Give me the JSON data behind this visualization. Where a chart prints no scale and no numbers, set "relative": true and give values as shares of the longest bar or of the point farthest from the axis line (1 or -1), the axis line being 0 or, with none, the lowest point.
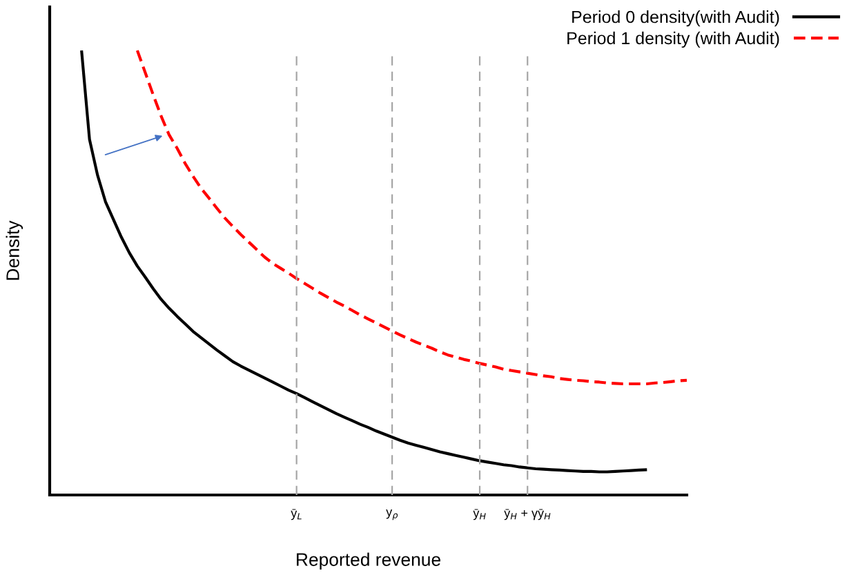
{
  "chart_data": {
    "type": "line",
    "relative": true,
    "xlabel": "Reported revenue",
    "ylabel": "Density",
    "legend": "top right",
    "marker": "none",
    "categories": [
      null,
      null,
      null,
      null,
      null,
      null,
      null,
      null,
      null,
      null,
      null,
      null,
      null,
      null,
      null,
      null,
      null,
      null,
      null,
      null,
      null,
      null,
      null,
      null,
      null,
      null,
      null,
      null,
      null,
      null,
      null,
      "ȳ$_{L}$",
      null,
      null,
      null,
      null,
      null,
      null,
      null,
      null,
      null,
      null,
      null,
      "y$_{ρ}$",
      null,
      null,
      null,
      null,
      null,
      null,
      null,
      null,
      null,
      null,
      "ȳ$_{H}$",
      null,
      null,
      null,
      null,
      null,
      "ȳ$_{H}$ + γȳ$_{H}$",
      null,
      null,
      null,
      null,
      null,
      null,
      null,
      null,
      null,
      null,
      null,
      null,
      null,
      null,
      null,
      null,
      null,
      null,
      null,
      null
    ],
    "series": [
      {
        "name": "Period 0 density(with Audit)",
        "color": "#000000",
        "line_style": "solid",
        "values": [
          null,
          null,
          null,
          null,
          1.0,
          0.8,
          0.72,
          0.66,
          0.62,
          0.58,
          0.545,
          0.515,
          0.49,
          0.464,
          0.44,
          0.42,
          0.402,
          0.385,
          0.368,
          0.354,
          0.34,
          0.326,
          0.313,
          0.3,
          0.29,
          0.281,
          0.272,
          0.263,
          0.254,
          0.245,
          0.236,
          0.228,
          0.219,
          0.21,
          0.201,
          0.192,
          0.183,
          0.175,
          0.167,
          0.159,
          0.152,
          0.144,
          0.137,
          0.13,
          0.123,
          0.117,
          0.112,
          0.107,
          0.102,
          0.097,
          0.093,
          0.089,
          0.085,
          0.081,
          0.077,
          0.074,
          0.071,
          0.068,
          0.066,
          0.063,
          0.061,
          0.059,
          0.058,
          0.057,
          0.056,
          0.055,
          0.054,
          0.053,
          0.053,
          0.052,
          0.052,
          0.053,
          0.054,
          0.055,
          0.056,
          0.057,
          null,
          null,
          null,
          null,
          null
        ]
      },
      {
        "name": "Period 1 density (with Audit)",
        "color": "#ff0000",
        "line_style": "dashed",
        "values": [
          null,
          null,
          null,
          null,
          null,
          null,
          null,
          null,
          null,
          null,
          null,
          1.0,
          0.95,
          0.9,
          0.852,
          0.81,
          0.78,
          0.746,
          0.717,
          0.69,
          0.668,
          0.645,
          0.623,
          0.604,
          0.586,
          0.569,
          0.552,
          0.535,
          0.521,
          0.51,
          0.499,
          0.487,
          0.476,
          0.465,
          0.454,
          0.444,
          0.434,
          0.425,
          0.415,
          0.405,
          0.396,
          0.387,
          0.378,
          0.369,
          0.36,
          0.352,
          0.344,
          0.337,
          0.33,
          0.322,
          0.315,
          0.31,
          0.305,
          0.301,
          0.296,
          0.292,
          0.288,
          0.283,
          0.28,
          0.277,
          0.274,
          0.271,
          0.268,
          0.266,
          0.262,
          0.26,
          0.258,
          0.257,
          0.255,
          0.254,
          0.252,
          0.251,
          0.25,
          0.25,
          0.25,
          0.25,
          0.252,
          0.253,
          0.255,
          0.257,
          0.258
        ]
      }
    ],
    "ref_lines": [
      {
        "axis": "x",
        "value": "ȳ$_{L}$",
        "color": "#a6a6a6",
        "line_style": "dashed"
      },
      {
        "axis": "x",
        "value": "y$_{ρ}$",
        "color": "#a6a6a6",
        "line_style": "dashed"
      },
      {
        "axis": "x",
        "value": "ȳ$_{H}$",
        "color": "#a6a6a6",
        "line_style": "dashed"
      },
      {
        "axis": "x",
        "value": "ȳ$_{H}$ + γȳ$_{H}$",
        "color": "#a6a6a6",
        "line_style": "dashed"
      }
    ]
  }
}
